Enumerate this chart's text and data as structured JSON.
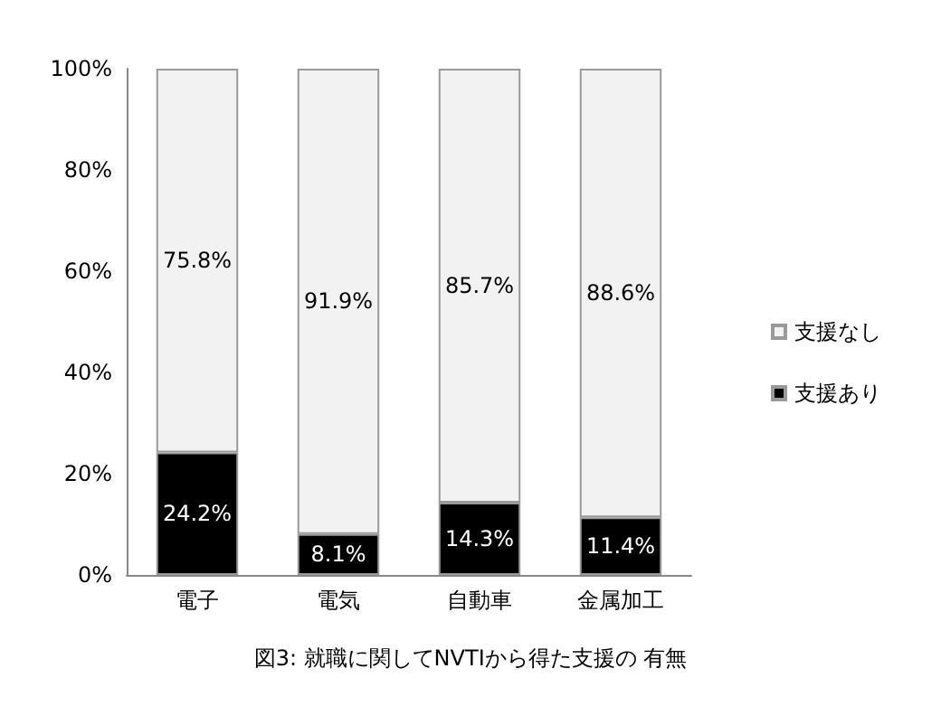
{
  "chart_data": {
    "type": "bar",
    "title": "図3: 就職に関してNVTIから得た支援の 有無",
    "categories": [
      "電子",
      "電気",
      "自動車",
      "金属加工"
    ],
    "stacked": true,
    "series": [
      {
        "name": "支援あり",
        "color": "#000000",
        "values": [
          24.2,
          8.1,
          14.3,
          11.4
        ],
        "value_labels": [
          "24.2%",
          "8.1%",
          "14.3%",
          "11.4%"
        ]
      },
      {
        "name": "支援なし",
        "color": "#f2f2f2",
        "values": [
          75.8,
          91.9,
          85.7,
          88.6
        ],
        "value_labels": [
          "75.8%",
          "91.9%",
          "85.7%",
          "88.6%"
        ]
      }
    ],
    "ylim": [
      0,
      100
    ],
    "yticks": [
      {
        "value": 0,
        "label": "0%"
      },
      {
        "value": 20,
        "label": "20%"
      },
      {
        "value": 40,
        "label": "40%"
      },
      {
        "value": 60,
        "label": "60%"
      },
      {
        "value": 80,
        "label": "80%"
      },
      {
        "value": 100,
        "label": "100%"
      }
    ],
    "grid": false,
    "legend": "right"
  }
}
